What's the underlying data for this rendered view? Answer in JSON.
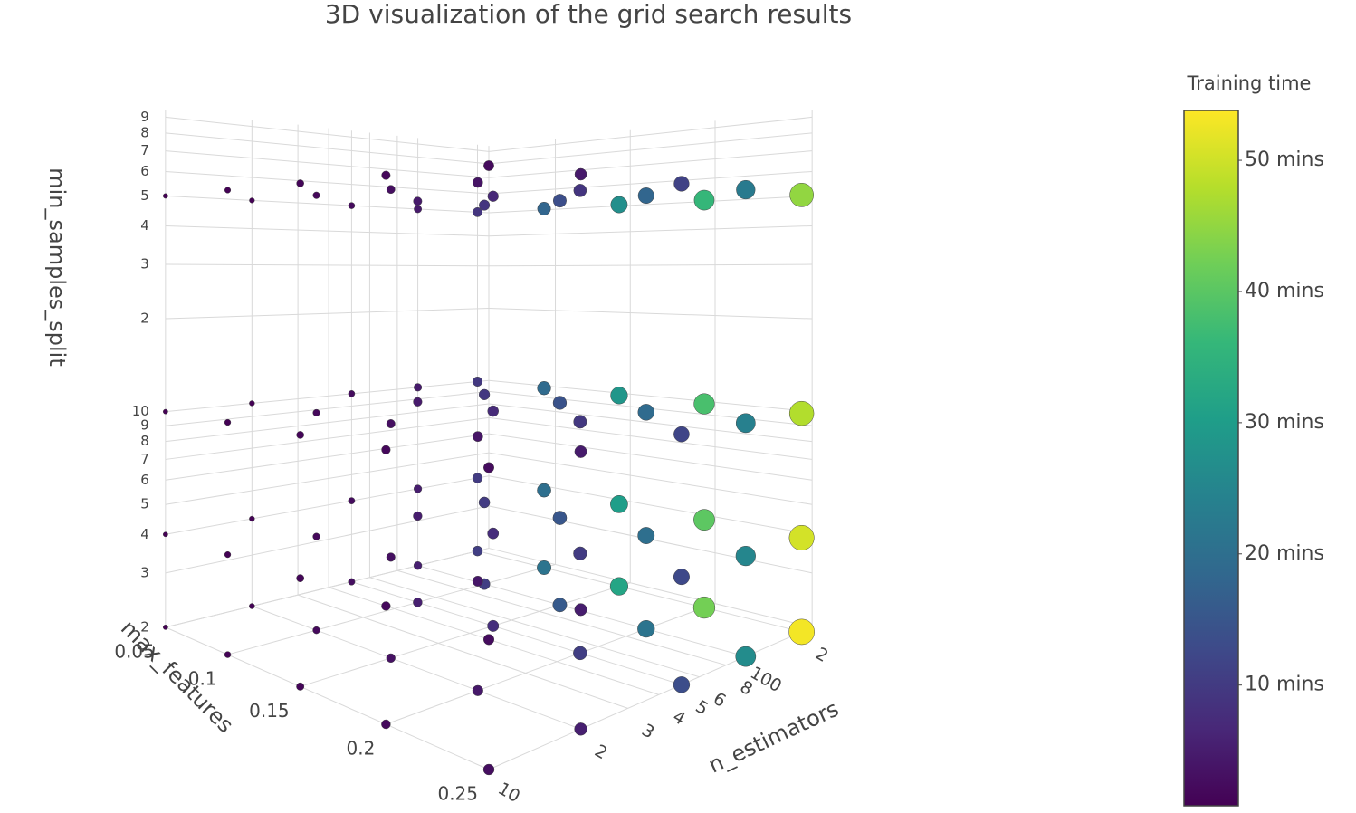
{
  "chart_data": {
    "type": "scatter3d",
    "title": "3D visualization of the grid search results",
    "xlabel": "n_estimators",
    "ylabel": "max_features",
    "zlabel": "min_samples_split",
    "xlog": true,
    "zlog": true,
    "grid": true,
    "x": [
      10,
      20,
      50,
      100,
      200
    ],
    "y": [
      0.05,
      0.1,
      0.15,
      0.2,
      0.25
    ],
    "z": [
      2,
      4,
      10,
      50
    ],
    "values": [
      [
        [
          0.5,
          1.1,
          1.6,
          2.1,
          2.7
        ],
        [
          1.1,
          2.1,
          3.2,
          4.2,
          5.3
        ],
        [
          2.7,
          5.3,
          8,
          10.6,
          13.3
        ],
        [
          5.3,
          10.6,
          15.9,
          21.2,
          26.5
        ],
        [
          10.6,
          21.2,
          31.8,
          42.4,
          53
        ]
      ],
      [
        [
          0.5,
          1,
          1.5,
          2,
          2.5
        ],
        [
          1,
          2,
          3,
          4,
          5
        ],
        [
          2.5,
          5,
          7.6,
          10.1,
          12.6
        ],
        [
          5,
          10.1,
          15.1,
          20.1,
          25.2
        ],
        [
          10.1,
          20.1,
          30.2,
          40.3,
          50.4
        ]
      ],
      [
        [
          0.5,
          1,
          1.4,
          1.9,
          2.4
        ],
        [
          1,
          1.9,
          2.9,
          3.8,
          4.8
        ],
        [
          2.4,
          4.8,
          7.2,
          9.5,
          11.9
        ],
        [
          4.8,
          9.5,
          14.3,
          19.1,
          23.9
        ],
        [
          9.5,
          19.1,
          28.6,
          38.2,
          47.7
        ]
      ],
      [
        [
          0.5,
          0.9,
          1.4,
          1.8,
          2.3
        ],
        [
          0.9,
          1.8,
          2.7,
          3.6,
          4.5
        ],
        [
          2.3,
          4.5,
          6.8,
          9,
          11.3
        ],
        [
          4.5,
          9,
          13.5,
          18,
          22.5
        ],
        [
          9,
          18,
          27,
          36,
          45
        ]
      ]
    ],
    "xlim": [
      10,
      230
    ],
    "ylim": [
      0.05,
      0.25
    ],
    "zlim": [
      2,
      95
    ],
    "xticks": [
      10,
      {
        "value": 20,
        "label": "2"
      },
      {
        "value": 30,
        "label": "3"
      },
      {
        "value": 40,
        "label": "4"
      },
      {
        "value": 50,
        "label": "5"
      },
      {
        "value": 60,
        "label": "6"
      },
      {
        "value": 80,
        "label": "8"
      },
      100,
      {
        "value": 200,
        "label": "2"
      }
    ],
    "yticks": [
      0.05,
      0.1,
      0.15,
      0.2,
      0.25
    ],
    "zticks": [
      2,
      3,
      4,
      5,
      6,
      7,
      8,
      9,
      10,
      {
        "value": 20,
        "label": "2"
      },
      {
        "value": 30,
        "label": "3"
      },
      {
        "value": 40,
        "label": "4"
      },
      {
        "value": 50,
        "label": "5"
      },
      {
        "value": 60,
        "label": "6"
      },
      {
        "value": 70,
        "label": "7"
      },
      {
        "value": 80,
        "label": "8"
      },
      {
        "value": 90,
        "label": "9"
      }
    ],
    "colorbar": {
      "title": "Training time",
      "clim": [
        0.8,
        53.8
      ],
      "colorscale": [
        "#440154",
        "#482878",
        "#3e4989",
        "#31688e",
        "#26828e",
        "#1f9e89",
        "#35b779",
        "#6ece58",
        "#b5de2b",
        "#fde725"
      ],
      "ticks": [
        {
          "value": 10,
          "label": "10 mins"
        },
        {
          "value": 20,
          "label": "20 mins"
        },
        {
          "value": 30,
          "label": "30 mins"
        },
        {
          "value": 40,
          "label": "40 mins"
        },
        {
          "value": 50,
          "label": "50 mins"
        }
      ]
    }
  }
}
